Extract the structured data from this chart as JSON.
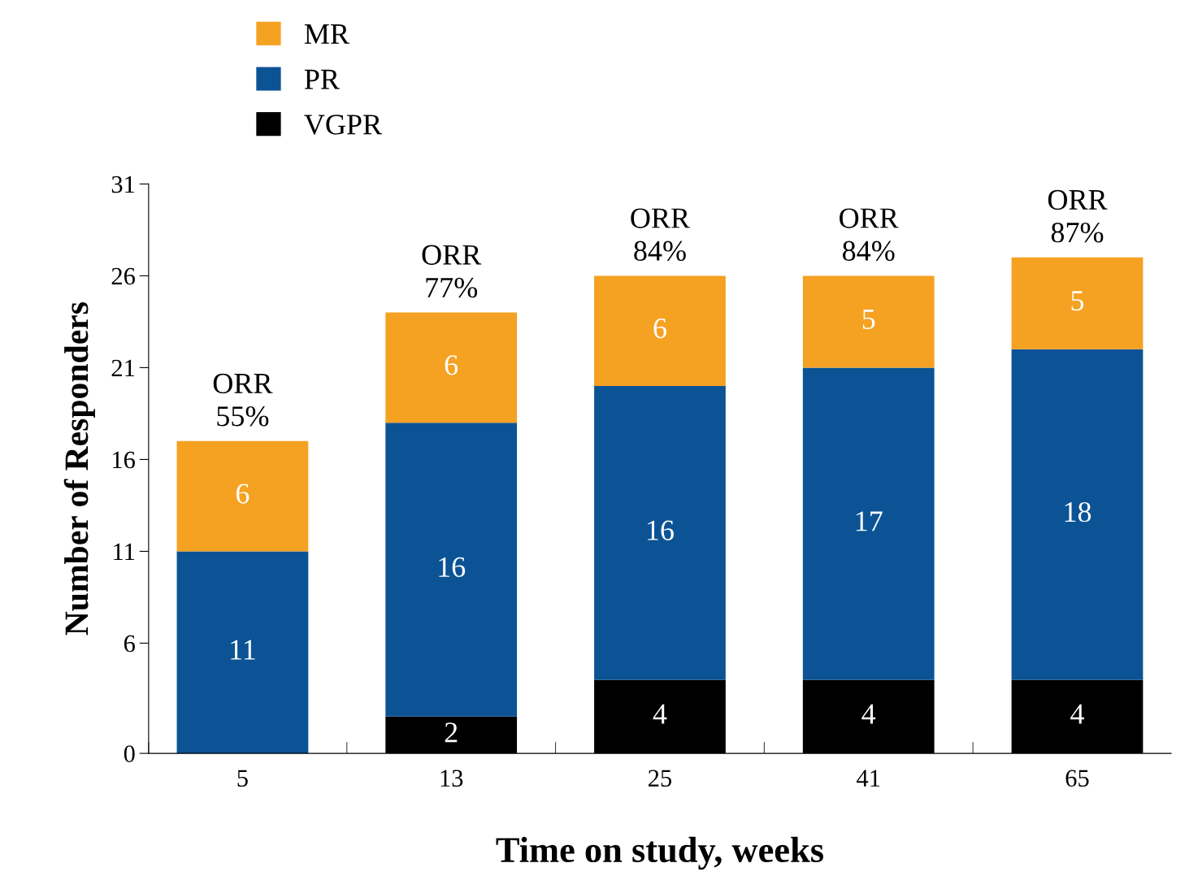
{
  "chart_data": {
    "type": "bar",
    "stacked": true,
    "xlabel": "Time on study, weeks",
    "ylabel": "Number of Responders",
    "categories": [
      "5",
      "13",
      "25",
      "41",
      "65"
    ],
    "series": [
      {
        "name": "VGPR",
        "color": "#000000",
        "values": [
          0,
          2,
          4,
          4,
          4
        ],
        "value_labels": [
          null,
          "2",
          "4",
          "4",
          "4"
        ]
      },
      {
        "name": "PR",
        "color": "#0b5394",
        "values": [
          11,
          16,
          16,
          17,
          18
        ],
        "value_labels": [
          "11",
          "16",
          "16",
          "17",
          "18"
        ]
      },
      {
        "name": "MR",
        "color": "#f5a122",
        "values": [
          6,
          6,
          6,
          5,
          5
        ],
        "value_labels": [
          "6",
          "6",
          "6",
          "5",
          "5"
        ]
      }
    ],
    "annotations": [
      {
        "text": "ORR\n55%",
        "x": "5",
        "y": 17
      },
      {
        "text": "ORR\n77%",
        "x": "13",
        "y": 24
      },
      {
        "text": "ORR\n84%",
        "x": "25",
        "y": 26
      },
      {
        "text": "ORR\n84%",
        "x": "41",
        "y": 26
      },
      {
        "text": "ORR\n87%",
        "x": "65",
        "y": 27
      }
    ],
    "ylim": [
      0,
      31
    ],
    "yticks": [
      0,
      6,
      11,
      16,
      21,
      26,
      31
    ],
    "grid": false,
    "legend": "top left"
  }
}
